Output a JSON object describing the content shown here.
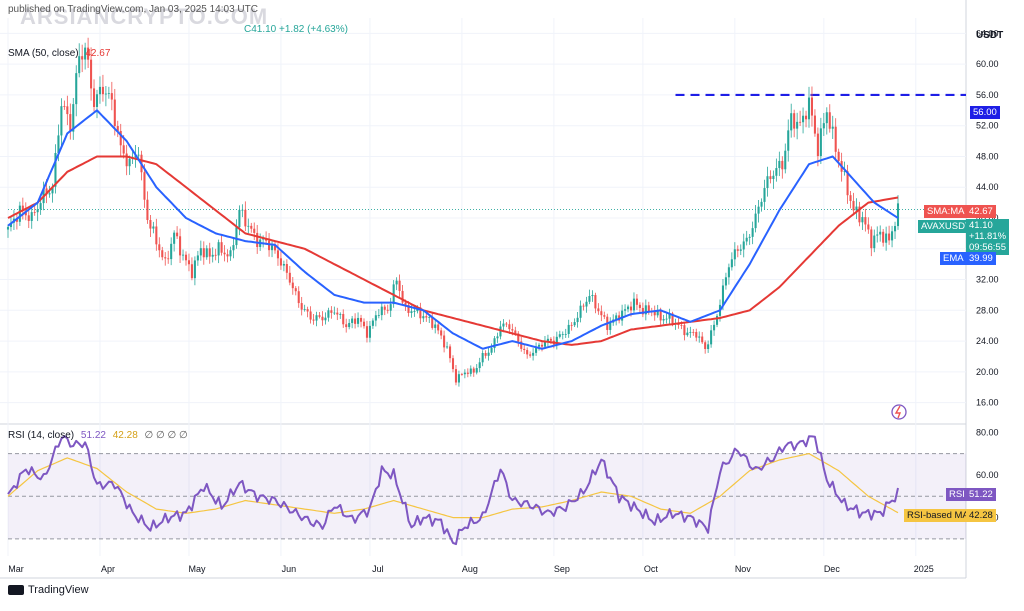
{
  "header": {
    "line1": "published on TradingView.com, Jan 03, 2025 14:03 UTC",
    "line2_prefix": "",
    "line2_value": "C41.10 +1.82 (+4.63%)",
    "line3_label": "SMA (50, close)",
    "line3_value": "42.67",
    "watermark": "ARSIANCRYPTO.COM"
  },
  "currency": "USDT",
  "badges": {
    "level": "56.00",
    "sma_label": "SMA:MA",
    "sma_value": "42.67",
    "symbol_label": "AVAXUSDT",
    "symbol_value": "41.10",
    "symbol_change": "+11.81%",
    "symbol_timer": "09:56:55",
    "ema_label": "EMA",
    "ema_value": "39.99",
    "rsi_label": "RSI",
    "rsi_value": "51.22",
    "rsi_ma_label": "RSI-based MA",
    "rsi_ma_value": "42.28"
  },
  "rsi_header": {
    "label": "RSI (14, close)",
    "value1": "51.22",
    "value2": "42.28",
    "rest": "∅ ∅ ∅ ∅"
  },
  "footer": {
    "brand": "TradingView"
  },
  "colors": {
    "up": "#26a69a",
    "down": "#ef5350",
    "ema": "#2962ff",
    "sma": "#e53935",
    "rsi": "#7e57c2",
    "rsi_ma": "#f5c542",
    "level": "#1e1ee6"
  },
  "chart_data": {
    "type": "candlestick",
    "title": "AVAXUSDT",
    "ylim": [
      14,
      66
    ],
    "y_ticks": [
      16,
      20,
      24,
      28,
      32,
      36,
      40,
      44,
      48,
      52,
      56,
      60,
      64
    ],
    "y_tick_labels": [
      "16.00",
      "20.00",
      "24.00",
      "28.00",
      "32.00",
      "36.00",
      "40.00",
      "44.00",
      "48.00",
      "52.00",
      "56.00",
      "60.00",
      "64.00"
    ],
    "x_tick_labels": [
      "Mar",
      "Apr",
      "May",
      "Jun",
      "Jul",
      "Aug",
      "Sep",
      "Oct",
      "Nov",
      "Dec",
      "2025"
    ],
    "x_tick_days": [
      0,
      31,
      61,
      92,
      122,
      153,
      184,
      214,
      245,
      275,
      306
    ],
    "horizontal_level": 56.0,
    "price_anchors": [
      [
        0,
        38.5
      ],
      [
        4,
        41
      ],
      [
        8,
        40
      ],
      [
        12,
        43
      ],
      [
        15,
        44
      ],
      [
        18,
        55
      ],
      [
        21,
        52
      ],
      [
        24,
        61
      ],
      [
        26,
        62
      ],
      [
        29,
        55
      ],
      [
        32,
        57
      ],
      [
        35,
        55
      ],
      [
        38,
        49
      ],
      [
        41,
        47
      ],
      [
        44,
        49
      ],
      [
        45,
        45
      ],
      [
        47,
        40
      ],
      [
        50,
        37
      ],
      [
        53,
        34
      ],
      [
        56,
        38
      ],
      [
        59,
        35
      ],
      [
        62,
        33
      ],
      [
        65,
        36
      ],
      [
        68,
        35
      ],
      [
        71,
        36
      ],
      [
        75,
        35
      ],
      [
        78,
        41
      ],
      [
        81,
        39
      ],
      [
        84,
        37
      ],
      [
        87,
        37
      ],
      [
        91,
        35
      ],
      [
        95,
        32
      ],
      [
        98,
        29
      ],
      [
        102,
        27
      ],
      [
        106,
        27
      ],
      [
        110,
        28
      ],
      [
        114,
        26
      ],
      [
        118,
        27
      ],
      [
        121,
        25
      ],
      [
        125,
        28
      ],
      [
        128,
        28
      ],
      [
        131,
        32
      ],
      [
        134,
        28
      ],
      [
        137,
        28
      ],
      [
        141,
        27
      ],
      [
        144,
        26
      ],
      [
        148,
        23
      ],
      [
        151,
        19
      ],
      [
        154,
        20
      ],
      [
        157,
        20
      ],
      [
        160,
        22
      ],
      [
        163,
        23
      ],
      [
        166,
        26
      ],
      [
        169,
        26
      ],
      [
        172,
        24
      ],
      [
        175,
        22
      ],
      [
        178,
        23
      ],
      [
        181,
        24
      ],
      [
        184,
        24
      ],
      [
        187,
        25
      ],
      [
        190,
        26
      ],
      [
        193,
        28
      ],
      [
        196,
        30
      ],
      [
        199,
        28
      ],
      [
        202,
        26
      ],
      [
        205,
        27
      ],
      [
        208,
        28
      ],
      [
        211,
        29
      ],
      [
        214,
        28
      ],
      [
        217,
        28
      ],
      [
        220,
        27
      ],
      [
        223,
        27
      ],
      [
        226,
        26
      ],
      [
        229,
        25
      ],
      [
        232,
        25
      ],
      [
        235,
        23
      ],
      [
        238,
        26
      ],
      [
        240,
        29
      ],
      [
        243,
        34
      ],
      [
        246,
        36
      ],
      [
        249,
        37
      ],
      [
        252,
        40
      ],
      [
        255,
        44
      ],
      [
        258,
        46
      ],
      [
        261,
        47
      ],
      [
        264,
        53
      ],
      [
        267,
        52
      ],
      [
        270,
        55
      ],
      [
        273,
        49
      ],
      [
        276,
        54
      ],
      [
        279,
        49
      ],
      [
        282,
        45
      ],
      [
        285,
        41
      ],
      [
        288,
        40
      ],
      [
        291,
        37
      ],
      [
        294,
        38
      ],
      [
        297,
        37
      ],
      [
        300,
        41
      ]
    ],
    "ema_anchors": [
      [
        0,
        39
      ],
      [
        10,
        42
      ],
      [
        20,
        51
      ],
      [
        30,
        54
      ],
      [
        40,
        50
      ],
      [
        50,
        44
      ],
      [
        60,
        40
      ],
      [
        70,
        38
      ],
      [
        80,
        37
      ],
      [
        90,
        36.5
      ],
      [
        100,
        33
      ],
      [
        110,
        30
      ],
      [
        120,
        29
      ],
      [
        130,
        29
      ],
      [
        140,
        28
      ],
      [
        150,
        25
      ],
      [
        160,
        23
      ],
      [
        170,
        24
      ],
      [
        180,
        23
      ],
      [
        190,
        24
      ],
      [
        200,
        26
      ],
      [
        210,
        27.5
      ],
      [
        220,
        28
      ],
      [
        230,
        26.5
      ],
      [
        240,
        28
      ],
      [
        250,
        34
      ],
      [
        260,
        41
      ],
      [
        270,
        47
      ],
      [
        278,
        48
      ],
      [
        285,
        45
      ],
      [
        292,
        42
      ],
      [
        300,
        40
      ]
    ],
    "sma_anchors": [
      [
        0,
        40
      ],
      [
        10,
        42
      ],
      [
        20,
        46
      ],
      [
        30,
        48
      ],
      [
        40,
        48
      ],
      [
        50,
        47
      ],
      [
        60,
        44
      ],
      [
        70,
        41
      ],
      [
        80,
        38
      ],
      [
        90,
        37
      ],
      [
        100,
        36
      ],
      [
        110,
        34
      ],
      [
        120,
        32
      ],
      [
        130,
        30
      ],
      [
        140,
        28
      ],
      [
        150,
        27
      ],
      [
        160,
        26
      ],
      [
        170,
        25
      ],
      [
        180,
        24
      ],
      [
        190,
        23.5
      ],
      [
        200,
        24
      ],
      [
        210,
        25.5
      ],
      [
        220,
        26
      ],
      [
        230,
        26.5
      ],
      [
        240,
        27
      ],
      [
        250,
        28
      ],
      [
        260,
        31
      ],
      [
        270,
        35
      ],
      [
        280,
        39
      ],
      [
        290,
        42
      ],
      [
        300,
        42.67
      ]
    ],
    "rsi": {
      "ylim": [
        22,
        82
      ],
      "y_ticks": [
        40,
        60,
        80
      ],
      "y_tick_labels": [
        "40.00",
        "60.00",
        "80.00"
      ],
      "band": [
        30,
        70
      ],
      "rsi_anchors": [
        [
          0,
          50
        ],
        [
          6,
          63
        ],
        [
          12,
          58
        ],
        [
          18,
          78
        ],
        [
          22,
          74
        ],
        [
          26,
          75
        ],
        [
          30,
          55
        ],
        [
          36,
          56
        ],
        [
          42,
          42
        ],
        [
          48,
          35
        ],
        [
          54,
          40
        ],
        [
          60,
          42
        ],
        [
          66,
          55
        ],
        [
          72,
          45
        ],
        [
          78,
          56
        ],
        [
          84,
          50
        ],
        [
          90,
          48
        ],
        [
          96,
          43
        ],
        [
          102,
          38
        ],
        [
          106,
          36
        ],
        [
          110,
          46
        ],
        [
          116,
          39
        ],
        [
          122,
          44
        ],
        [
          126,
          62
        ],
        [
          130,
          60
        ],
        [
          136,
          36
        ],
        [
          140,
          40
        ],
        [
          146,
          38
        ],
        [
          150,
          28
        ],
        [
          154,
          36
        ],
        [
          160,
          40
        ],
        [
          166,
          63
        ],
        [
          170,
          48
        ],
        [
          176,
          46
        ],
        [
          182,
          42
        ],
        [
          188,
          45
        ],
        [
          194,
          52
        ],
        [
          200,
          67
        ],
        [
          206,
          50
        ],
        [
          212,
          44
        ],
        [
          218,
          38
        ],
        [
          224,
          42
        ],
        [
          230,
          40
        ],
        [
          236,
          35
        ],
        [
          240,
          62
        ],
        [
          246,
          72
        ],
        [
          252,
          62
        ],
        [
          258,
          68
        ],
        [
          262,
          74
        ],
        [
          266,
          74
        ],
        [
          272,
          78
        ],
        [
          276,
          58
        ],
        [
          282,
          46
        ],
        [
          288,
          42
        ],
        [
          294,
          42
        ],
        [
          300,
          51.22
        ]
      ],
      "ma_anchors": [
        [
          0,
          50
        ],
        [
          10,
          62
        ],
        [
          20,
          68
        ],
        [
          30,
          63
        ],
        [
          40,
          52
        ],
        [
          50,
          44
        ],
        [
          60,
          42
        ],
        [
          70,
          44
        ],
        [
          80,
          48
        ],
        [
          90,
          46
        ],
        [
          100,
          44
        ],
        [
          110,
          42
        ],
        [
          120,
          44
        ],
        [
          130,
          48
        ],
        [
          140,
          44
        ],
        [
          150,
          40
        ],
        [
          160,
          40
        ],
        [
          170,
          44
        ],
        [
          180,
          45
        ],
        [
          190,
          48
        ],
        [
          200,
          52
        ],
        [
          210,
          50
        ],
        [
          220,
          44
        ],
        [
          230,
          42
        ],
        [
          240,
          50
        ],
        [
          250,
          62
        ],
        [
          260,
          67
        ],
        [
          270,
          70
        ],
        [
          280,
          62
        ],
        [
          290,
          50
        ],
        [
          300,
          42.28
        ]
      ]
    }
  }
}
